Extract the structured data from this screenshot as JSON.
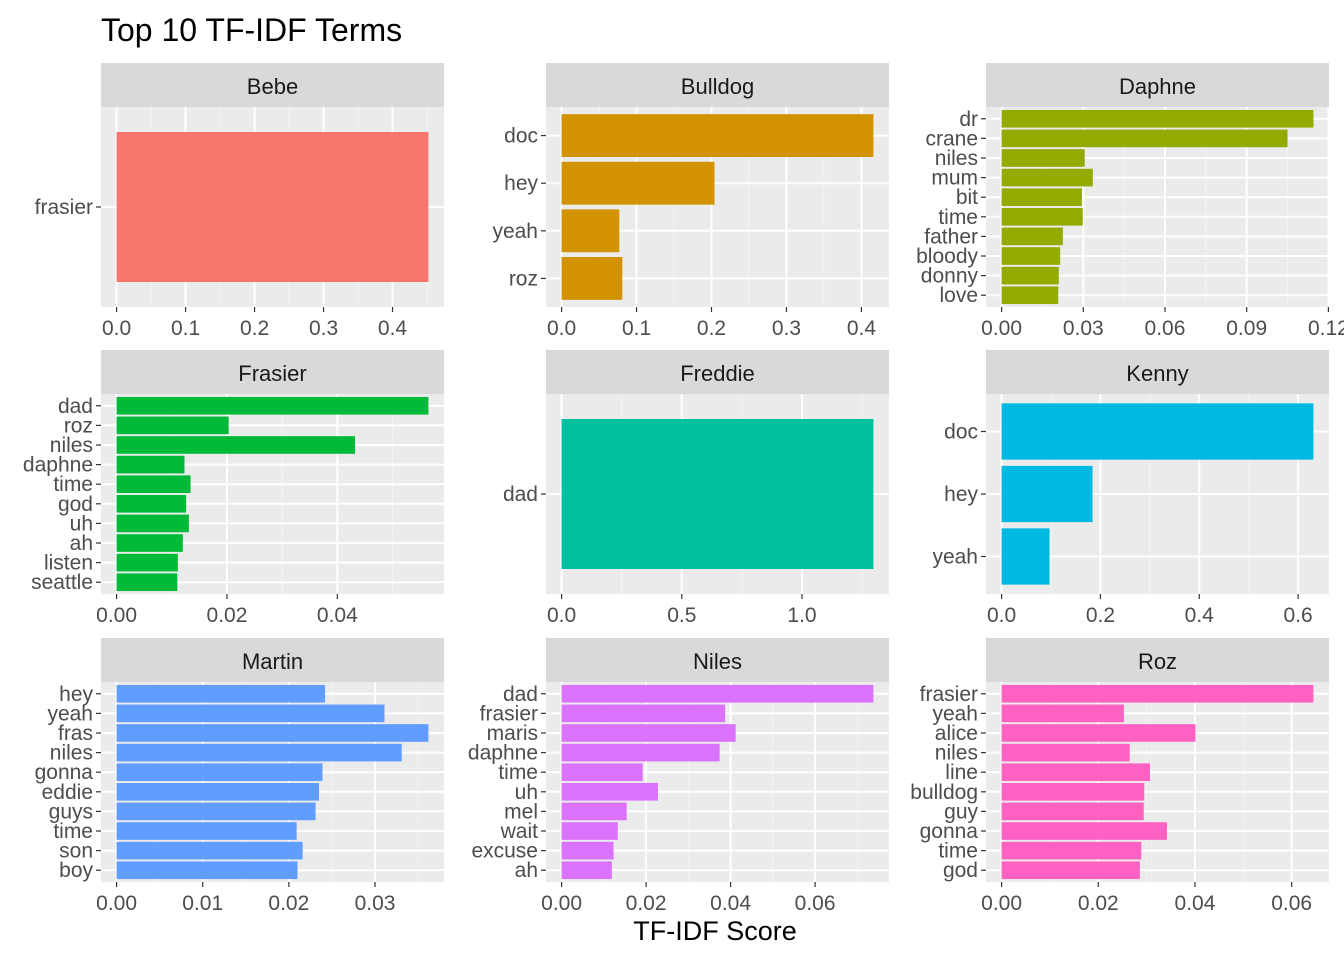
{
  "chart_data": {
    "type": "bar",
    "orientation": "horizontal",
    "title": "Top 10 TF-IDF Terms",
    "xlabel": "TF-IDF Score",
    "ylabel": "",
    "grid": true,
    "legend": "none",
    "facets": [
      {
        "name": "Bebe",
        "color": "#F8766D",
        "categories": [
          "frasier"
        ],
        "values": [
          0.452
        ],
        "xlim": [
          0,
          0.452
        ],
        "ticks": [
          0,
          0.1,
          0.2,
          0.3,
          0.4
        ],
        "tick_labels": [
          "0.0",
          "0.1",
          "0.2",
          "0.3",
          "0.4"
        ]
      },
      {
        "name": "Bulldog",
        "color": "#D39200",
        "categories": [
          "doc",
          "hey",
          "yeah",
          "roz"
        ],
        "values": [
          0.416,
          0.204,
          0.077,
          0.081
        ],
        "xlim": [
          0,
          0.416
        ],
        "ticks": [
          0,
          0.1,
          0.2,
          0.3,
          0.4
        ],
        "tick_labels": [
          "0.0",
          "0.1",
          "0.2",
          "0.3",
          "0.4"
        ]
      },
      {
        "name": "Daphne",
        "color": "#93AA00",
        "categories": [
          "dr",
          "crane",
          "niles",
          "mum",
          "bit",
          "time",
          "father",
          "bloody",
          "donny",
          "love"
        ],
        "values": [
          0.1145,
          0.105,
          0.0305,
          0.0335,
          0.0295,
          0.0298,
          0.0225,
          0.0215,
          0.021,
          0.0208
        ],
        "xlim": [
          0,
          0.1145
        ],
        "ticks": [
          0,
          0.03,
          0.06,
          0.09,
          0.12
        ],
        "tick_labels": [
          "0.00",
          "0.03",
          "0.06",
          "0.09",
          "0.12"
        ]
      },
      {
        "name": "Frasier",
        "color": "#00BA38",
        "categories": [
          "dad",
          "roz",
          "niles",
          "daphne",
          "time",
          "god",
          "uh",
          "ah",
          "listen",
          "seattle"
        ],
        "values": [
          0.0565,
          0.0203,
          0.0432,
          0.0123,
          0.0134,
          0.0126,
          0.0131,
          0.012,
          0.0111,
          0.011
        ],
        "xlim": [
          0,
          0.0565
        ],
        "ticks": [
          0,
          0.02,
          0.04
        ],
        "tick_labels": [
          "0.00",
          "0.02",
          "0.04"
        ]
      },
      {
        "name": "Freddie",
        "color": "#00C19F",
        "categories": [
          "dad"
        ],
        "values": [
          1.297
        ],
        "xlim": [
          0,
          1.297
        ],
        "ticks": [
          0,
          0.5,
          1.0
        ],
        "tick_labels": [
          "0.0",
          "0.5",
          "1.0"
        ]
      },
      {
        "name": "Kenny",
        "color": "#00B9E3",
        "categories": [
          "doc",
          "hey",
          "yeah"
        ],
        "values": [
          0.631,
          0.184,
          0.097
        ],
        "xlim": [
          0,
          0.631
        ],
        "ticks": [
          0,
          0.2,
          0.4,
          0.6
        ],
        "tick_labels": [
          "0.0",
          "0.2",
          "0.4",
          "0.6"
        ]
      },
      {
        "name": "Martin",
        "color": "#619CFF",
        "categories": [
          "hey",
          "yeah",
          "fras",
          "niles",
          "gonna",
          "eddie",
          "guys",
          "time",
          "son",
          "boy"
        ],
        "values": [
          0.0242,
          0.0311,
          0.0362,
          0.0331,
          0.0239,
          0.0235,
          0.0231,
          0.0209,
          0.0216,
          0.021
        ],
        "xlim": [
          0,
          0.0362
        ],
        "ticks": [
          0,
          0.01,
          0.02,
          0.03
        ],
        "tick_labels": [
          "0.00",
          "0.01",
          "0.02",
          "0.03"
        ]
      },
      {
        "name": "Niles",
        "color": "#DB72FB",
        "categories": [
          "dad",
          "frasier",
          "maris",
          "daphne",
          "time",
          "uh",
          "mel",
          "wait",
          "excuse",
          "ah"
        ],
        "values": [
          0.0738,
          0.0387,
          0.0412,
          0.0374,
          0.0192,
          0.0228,
          0.0154,
          0.0133,
          0.0123,
          0.0119
        ],
        "xlim": [
          0,
          0.0738
        ],
        "ticks": [
          0,
          0.02,
          0.04,
          0.06
        ],
        "tick_labels": [
          "0.00",
          "0.02",
          "0.04",
          "0.06"
        ]
      },
      {
        "name": "Roz",
        "color": "#FF61C3",
        "categories": [
          "frasier",
          "yeah",
          "alice",
          "niles",
          "line",
          "bulldog",
          "guy",
          "gonna",
          "time",
          "god"
        ],
        "values": [
          0.0645,
          0.0253,
          0.0401,
          0.0265,
          0.0307,
          0.0295,
          0.0294,
          0.0342,
          0.0289,
          0.0286
        ],
        "xlim": [
          0,
          0.0645
        ],
        "ticks": [
          0,
          0.02,
          0.04,
          0.06
        ],
        "tick_labels": [
          "0.00",
          "0.02",
          "0.04",
          "0.06"
        ]
      }
    ]
  }
}
